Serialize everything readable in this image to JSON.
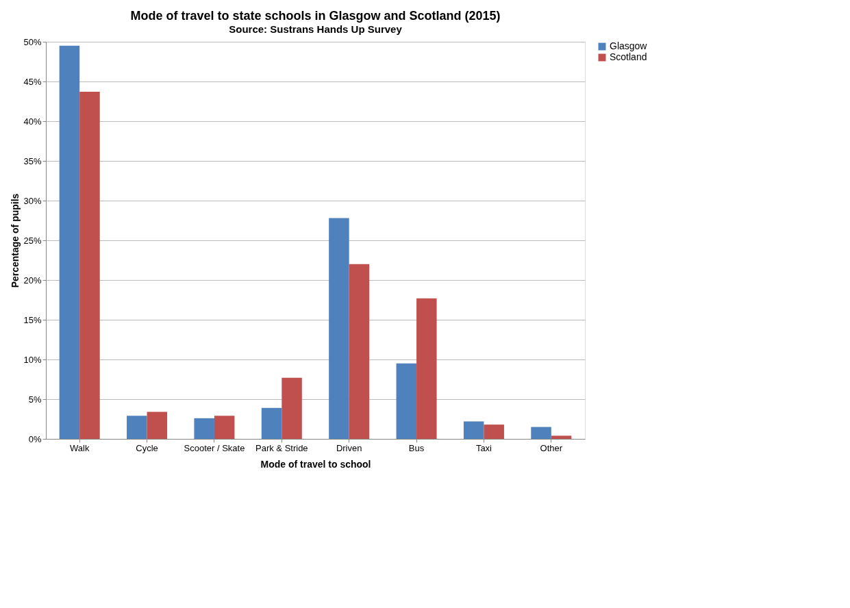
{
  "chart_data": {
    "type": "bar",
    "title": "Mode of travel to state schools in Glasgow and Scotland (2015)",
    "subtitle": "Source: Sustrans Hands Up Survey",
    "xlabel": "Mode of travel to school",
    "ylabel": "Percentage of pupils",
    "categories": [
      "Walk",
      "Cycle",
      "Scooter / Skate",
      "Park & Stride",
      "Driven",
      "Bus",
      "Taxi",
      "Other"
    ],
    "series": [
      {
        "name": "Glasgow",
        "color": "#4f81bd",
        "values": [
          49.5,
          2.9,
          2.6,
          3.9,
          27.8,
          9.5,
          2.2,
          1.5
        ]
      },
      {
        "name": "Scotland",
        "color": "#c0504d",
        "values": [
          43.7,
          3.4,
          2.9,
          7.7,
          22.0,
          17.7,
          1.8,
          0.4
        ]
      }
    ],
    "ylim": [
      0,
      50
    ],
    "yticks": [
      {
        "value": 0,
        "label": "0%"
      },
      {
        "value": 5,
        "label": "5%"
      },
      {
        "value": 10,
        "label": "10%"
      },
      {
        "value": 15,
        "label": "15%"
      },
      {
        "value": 20,
        "label": "20%"
      },
      {
        "value": 25,
        "label": "25%"
      },
      {
        "value": 30,
        "label": "30%"
      },
      {
        "value": 35,
        "label": "35%"
      },
      {
        "value": 40,
        "label": "40%"
      },
      {
        "value": 45,
        "label": "45%"
      },
      {
        "value": 50,
        "label": "50%"
      }
    ],
    "grid": "y",
    "legend": "right"
  }
}
